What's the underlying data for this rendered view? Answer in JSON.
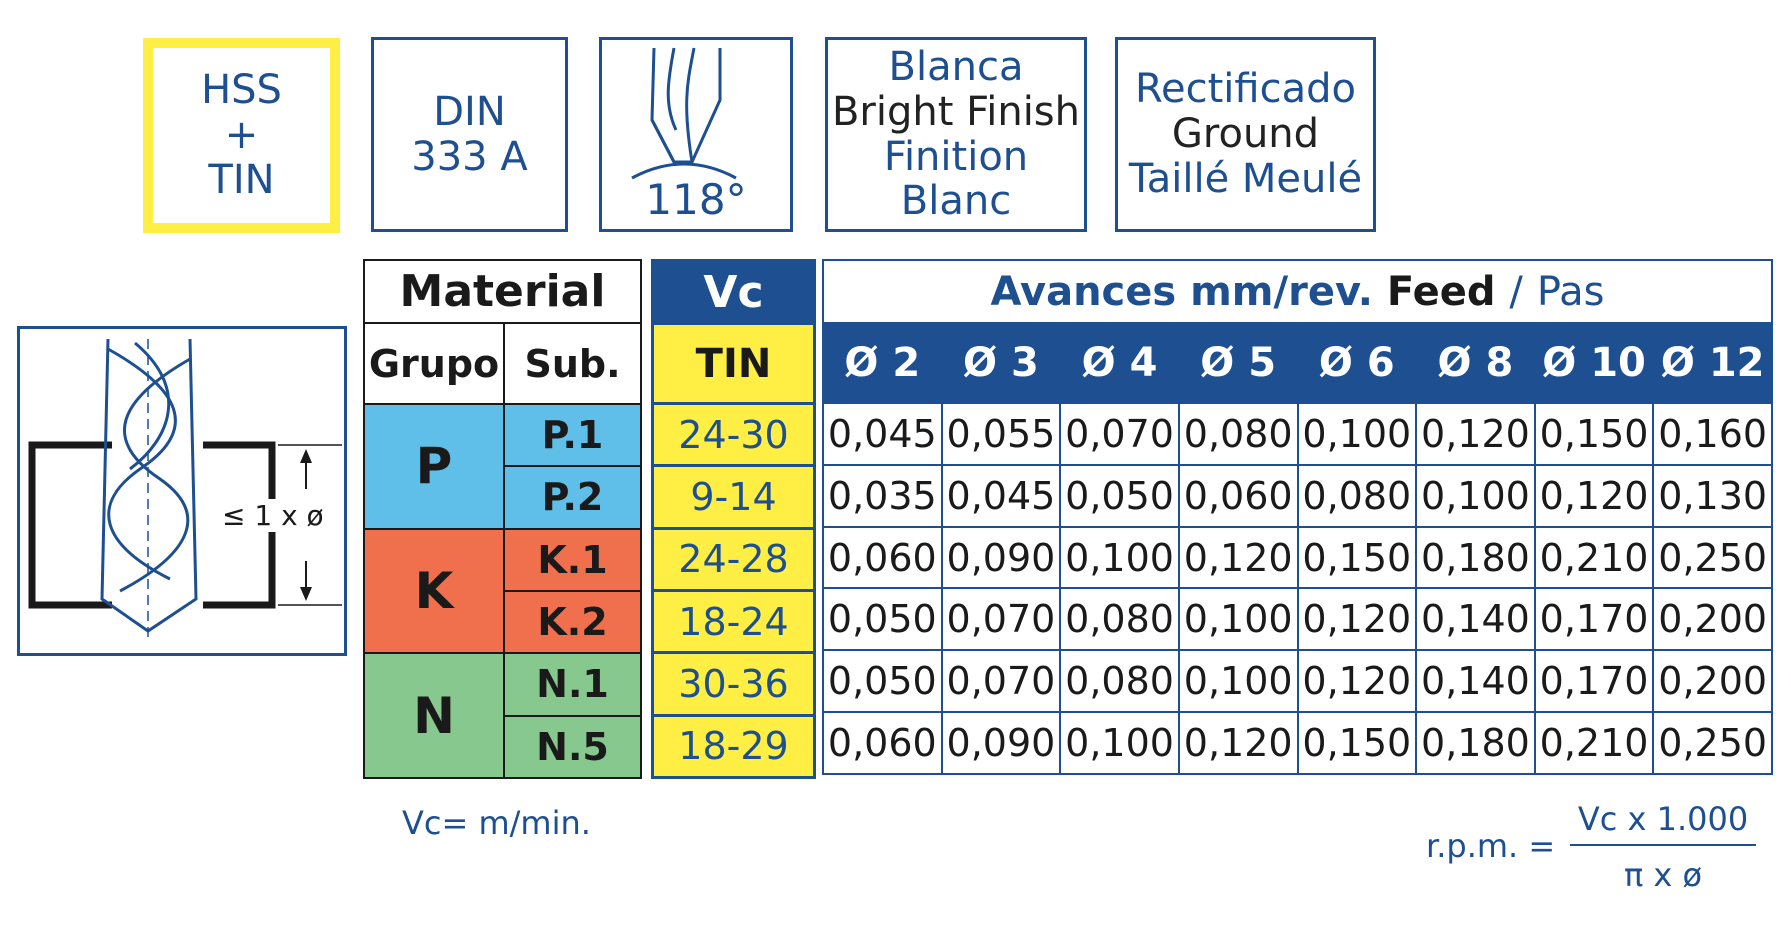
{
  "badges": {
    "material": {
      "line1": "HSS",
      "line2": "+",
      "line3": "TIN"
    },
    "standard": {
      "line1": "DIN",
      "line2": "333 A"
    },
    "angle": {
      "label": "118°"
    },
    "finish": {
      "line1": "Blanca",
      "line2": "Bright Finish",
      "line3": "Finition Blanc"
    },
    "grind": {
      "line1": "Rectificado",
      "line2": "Ground",
      "line3": "Taillé Meulé"
    }
  },
  "depth_diagram": {
    "label": "≤ 1 x ø"
  },
  "material_table": {
    "header": "Material",
    "col_group": "Grupo",
    "col_sub": "Sub.",
    "groups": [
      {
        "name": "P",
        "color": "#5fbfe8",
        "subs": [
          "P.1",
          "P.2"
        ]
      },
      {
        "name": "K",
        "color": "#f0704e",
        "subs": [
          "K.1",
          "K.2"
        ]
      },
      {
        "name": "N",
        "color": "#86c88e",
        "subs": [
          "N.1",
          "N.5"
        ]
      }
    ]
  },
  "vc_table": {
    "header": "Vc",
    "sub": "TIN",
    "values": [
      "24-30",
      "9-14",
      "24-28",
      "18-24",
      "30-36",
      "18-29"
    ]
  },
  "feed_table": {
    "title_bold": "Avances mm/rev.",
    "title_feed": "Feed",
    "title_sep": "/",
    "title_pas": "Pas",
    "diameters": [
      "Ø 2",
      "Ø 3",
      "Ø 4",
      "Ø 5",
      "Ø 6",
      "Ø 8",
      "Ø 10",
      "Ø 12"
    ],
    "rows": [
      [
        "0,045",
        "0,055",
        "0,070",
        "0,080",
        "0,100",
        "0,120",
        "0,150",
        "0,160"
      ],
      [
        "0,035",
        "0,045",
        "0,050",
        "0,060",
        "0,080",
        "0,100",
        "0,120",
        "0,130"
      ],
      [
        "0,060",
        "0,090",
        "0,100",
        "0,120",
        "0,150",
        "0,180",
        "0,210",
        "0,250"
      ],
      [
        "0,050",
        "0,070",
        "0,080",
        "0,100",
        "0,120",
        "0,140",
        "0,170",
        "0,200"
      ],
      [
        "0,050",
        "0,070",
        "0,080",
        "0,100",
        "0,120",
        "0,140",
        "0,170",
        "0,200"
      ],
      [
        "0,060",
        "0,090",
        "0,100",
        "0,120",
        "0,150",
        "0,180",
        "0,210",
        "0,250"
      ]
    ]
  },
  "footer": {
    "vc_unit": "Vc= m/min.",
    "rpm_label": "r.p.m. =",
    "rpm_numerator": "Vc x 1.000",
    "rpm_denominator": "π x ø"
  },
  "colors": {
    "blue": "#1d4f91",
    "yellow": "#ffee44",
    "yellow_border": "#ffee44"
  }
}
